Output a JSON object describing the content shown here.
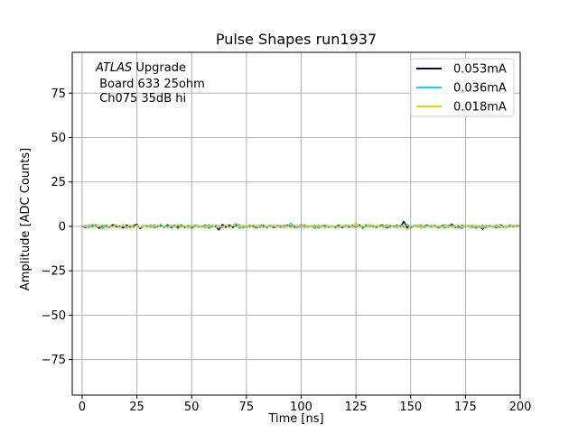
{
  "chart_data": {
    "type": "line",
    "title": "Pulse Shapes run1937",
    "xlabel": "Time [ns]",
    "ylabel": "Amplitude [ADC Counts]",
    "xlim": [
      -4.5,
      200
    ],
    "ylim": [
      -95,
      98
    ],
    "xticks": [
      0,
      25,
      50,
      75,
      100,
      125,
      150,
      175,
      200
    ],
    "yticks": [
      -75,
      -50,
      -25,
      0,
      25,
      50,
      75
    ],
    "grid": true,
    "legend_position": "top-right",
    "annotation": {
      "italic_part": "ATLAS",
      "line1_rest": " Upgrade",
      "line2": " Board 633 25ohm",
      "line3": " Ch075 35dB hi"
    },
    "x_step": 1.5625,
    "series": [
      {
        "name": "0.053mA",
        "color": "#00006e",
        "values": [
          0.3,
          -0.8,
          0.5,
          -0.2,
          0.9,
          -1.1,
          0.4,
          0.1,
          -0.6,
          1.0,
          -0.3,
          0.2,
          -0.9,
          0.7,
          -0.4,
          0.3,
          1.2,
          -1.3,
          0.5,
          -0.2,
          0.6,
          -0.8,
          0.2,
          0.4,
          -0.5,
          0.9,
          -0.7,
          0.1,
          -0.3,
          0.8,
          -0.6,
          0.5,
          -1.0,
          0.3,
          0.2,
          -0.4,
          0.7,
          -0.9,
          0.6,
          -0.1,
          -2.0,
          1.1,
          -0.5,
          0.8,
          -0.6,
          0.4,
          0.9,
          -0.8,
          0.3,
          -0.3,
          0.5,
          -0.9,
          0.7,
          0.1,
          -0.4,
          0.6,
          -0.7,
          0.2,
          0.5,
          -0.6,
          0.8,
          -0.3,
          0.1,
          -0.5,
          0.9,
          -0.8,
          0.4,
          -0.2,
          0.7,
          -0.9,
          0.3,
          0.5,
          -0.6,
          0.2,
          -0.4,
          0.8,
          -0.7,
          0.6,
          -0.3,
          0.4,
          -0.5,
          0.9,
          -1.0,
          0.7,
          -0.2,
          0.3,
          -0.6,
          0.5,
          0.8,
          -0.9,
          0.4,
          -0.3,
          0.6,
          -0.5,
          2.8,
          -0.7,
          0.3,
          -0.2,
          0.8,
          -0.9,
          0.5,
          0.6,
          -0.4,
          0.7,
          -0.8,
          0.2,
          0.9,
          -0.6,
          1.3,
          -0.7,
          0.4,
          -1.1,
          0.6,
          -0.3,
          0.8,
          -0.9,
          0.5,
          -1.6,
          0.7,
          -0.4,
          0.3,
          -0.8,
          0.9,
          0.1,
          -0.5,
          0.6,
          -0.2,
          0.4,
          0.2
        ]
      },
      {
        "name": "0.036mA",
        "color": "#00d4ff",
        "values": [
          -0.4,
          0.6,
          -0.9,
          1.1,
          -0.3,
          0.5,
          -1.4,
          0.8,
          -0.6,
          0.2,
          0.9,
          -0.7,
          0.4,
          -1.0,
          0.6,
          -0.2,
          0.7,
          -0.8,
          0.3,
          0.5,
          -0.6,
          0.9,
          -0.4,
          1.2,
          -0.9,
          0.4,
          -0.3,
          0.8,
          -1.5,
          0.6,
          -0.2,
          0.5,
          -0.7,
          0.9,
          -0.5,
          0.3,
          -0.8,
          1.0,
          -0.4,
          0.6,
          0.2,
          -0.9,
          0.7,
          -0.3,
          0.5,
          1.6,
          -1.2,
          0.4,
          -0.6,
          0.8,
          -0.5,
          0.3,
          -0.7,
          0.9,
          -1.0,
          0.6,
          -0.4,
          0.5,
          -0.8,
          0.7,
          -0.3,
          1.8,
          -0.9,
          0.4,
          -0.6,
          0.9,
          -0.5,
          0.2,
          -1.3,
          0.7,
          -0.4,
          0.8,
          -0.6,
          0.3,
          -0.9,
          0.5,
          -0.2,
          0.6,
          -0.8,
          0.9,
          -0.5,
          0.4,
          -0.7,
          1.0,
          -0.3,
          0.6,
          -0.9,
          0.5,
          -0.4,
          0.8,
          -0.6,
          0.3,
          -0.8,
          0.7,
          -0.5,
          1.1,
          -1.2,
          0.6,
          -0.3,
          0.9,
          -0.7,
          0.4,
          -0.5,
          0.8,
          -0.6,
          0.3,
          -0.9,
          0.7,
          -0.4,
          0.5,
          -1.0,
          0.9,
          -0.3,
          0.6,
          -0.8,
          0.4,
          -0.5,
          0.7,
          -0.9,
          0.6,
          -0.2,
          0.8,
          -0.7,
          0.4,
          -0.6,
          0.9,
          -0.4,
          0.5,
          -0.3
        ]
      },
      {
        "name": "0.018mA",
        "color": "#ffc800",
        "values": [
          0.8,
          -0.4,
          0.3,
          -0.7,
          0.6,
          -0.3,
          0.9,
          -0.8,
          0.4,
          -0.5,
          0.7,
          -0.6,
          1.0,
          -0.4,
          0.5,
          -0.9,
          0.6,
          -0.3,
          0.8,
          -0.7,
          0.4,
          -0.6,
          0.9,
          -0.5,
          0.3,
          -0.8,
          0.7,
          -0.4,
          1.1,
          -0.6,
          0.5,
          -0.9,
          0.8,
          -0.3,
          0.6,
          -0.7,
          0.4,
          -0.5,
          0.9,
          -0.8,
          0.6,
          -0.4,
          0.7,
          -0.9,
          0.5,
          -0.3,
          0.8,
          -0.6,
          0.4,
          -0.7,
          1.0,
          -0.5,
          0.6,
          -0.8,
          0.3,
          -0.4,
          0.9,
          -0.6,
          0.7,
          -0.5,
          0.4,
          -0.9,
          0.8,
          -0.3,
          0.6,
          -0.7,
          0.5,
          -0.4,
          0.9,
          -0.6,
          0.3,
          -0.8,
          0.7,
          -0.5,
          0.4,
          -0.9,
          0.6,
          -0.3,
          0.8,
          -0.7,
          2.2,
          -0.4,
          0.5,
          -0.6,
          1.4,
          -0.8,
          0.7,
          -0.5,
          0.6,
          -0.4,
          0.9,
          -0.7,
          0.3,
          -0.6,
          0.8,
          -1.9,
          0.5,
          -0.4,
          0.7,
          -0.8,
          0.6,
          -0.3,
          0.9,
          -0.5,
          0.4,
          -0.7,
          0.8,
          -0.6,
          0.5,
          -0.4,
          0.9,
          -0.8,
          0.6,
          -0.3,
          0.7,
          -0.5,
          0.4,
          -0.9,
          0.8,
          -0.6,
          0.5,
          -0.4,
          0.7,
          -0.8,
          0.3,
          -0.6,
          0.9,
          -0.5,
          0.4
        ]
      }
    ]
  }
}
